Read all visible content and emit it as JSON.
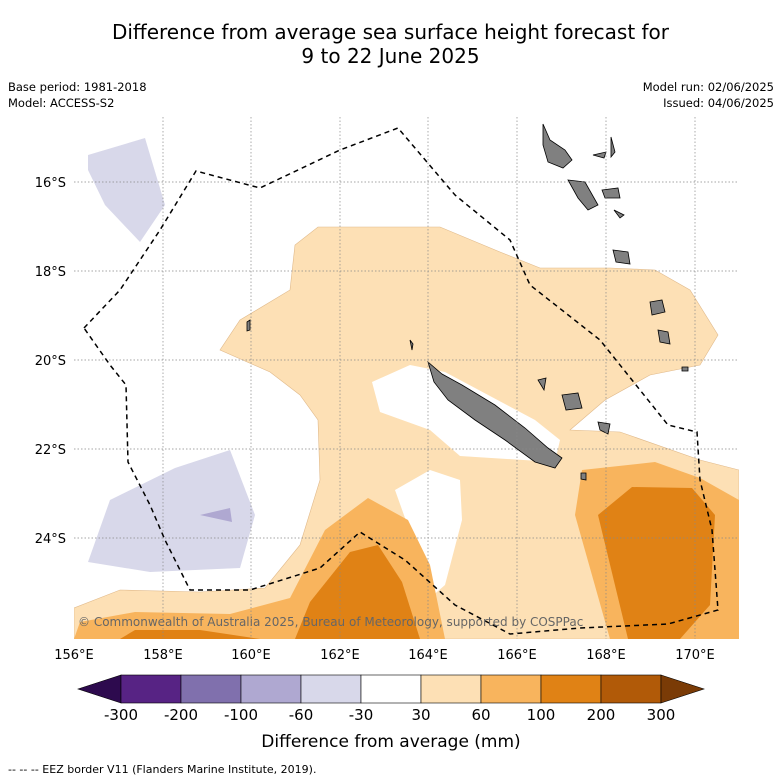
{
  "title_line1": "Difference from average sea surface height forecast for",
  "title_line2": "9 to 22 June 2025",
  "base_period": "Base period: 1981-2018",
  "model": "Model: ACCESS-S2",
  "model_run": "Model run: 02/06/2025",
  "issued": "Issued: 04/06/2025",
  "credit": "© Commonwealth of Australia 2025, Bureau of Meteorology, supported by COSPPac",
  "footer": "--  --  -- EEZ border V11 (Flanders Marine Institute, 2019).",
  "lon_ticks": [
    "156°E",
    "158°E",
    "160°E",
    "162°E",
    "164°E",
    "166°E",
    "168°E",
    "170°E"
  ],
  "lat_ticks": [
    "16°S",
    "18°S",
    "20°S",
    "22°S",
    "24°S"
  ],
  "colorbar": {
    "title": "Difference from average (mm)",
    "labels": [
      "-300",
      "-200",
      "-100",
      "-60",
      "-30",
      "30",
      "60",
      "100",
      "200",
      "300"
    ],
    "colors": [
      "#2d0a4e",
      "#572384",
      "#8070ad",
      "#afa8d1",
      "#d8d8ea",
      "#ffffff",
      "#fde0b5",
      "#f8b45d",
      "#e08215",
      "#b15a08",
      "#7a3b06"
    ]
  },
  "colors": {
    "land": "#808080",
    "gridline": "#888888",
    "eez": "#000000"
  }
}
